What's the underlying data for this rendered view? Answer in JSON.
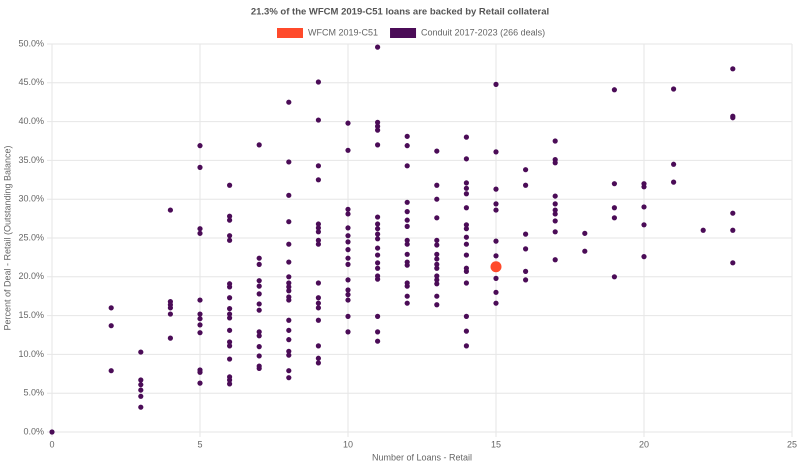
{
  "chart_data": {
    "type": "scatter",
    "title": "21.3% of the WFCM 2019-C51 loans are backed by Retail collateral",
    "x_label": "Number of Loans - Retail",
    "y_label": "Percent of Deal - Retail (Outstanding Balance)",
    "xlim": [
      0,
      25
    ],
    "xticks": [
      0,
      5,
      10,
      15,
      20,
      25
    ],
    "ylim": [
      0,
      50
    ],
    "yticks": [
      {
        "value": 0,
        "label": "0.0%"
      },
      {
        "value": 5,
        "label": "5.0%"
      },
      {
        "value": 10,
        "label": "10.0%"
      },
      {
        "value": 15,
        "label": "15.0%"
      },
      {
        "value": 20,
        "label": "20.0%"
      },
      {
        "value": 25,
        "label": "25.0%"
      },
      {
        "value": 30,
        "label": "30.0%"
      },
      {
        "value": 35,
        "label": "35.0%"
      },
      {
        "value": 40,
        "label": "40.0%"
      },
      {
        "value": 45,
        "label": "45.0%"
      },
      {
        "value": 50,
        "label": "50.0%"
      }
    ],
    "grid": true,
    "legend": "top",
    "series": [
      {
        "name": "WFCM 2019-C51",
        "color": "#ff4a2b",
        "x": [
          15
        ],
        "values": [
          21.3
        ]
      },
      {
        "name": "Conduit 2017-2023 (266 deals)",
        "color": "#4b0c57",
        "x": [
          0,
          2,
          2,
          2,
          3,
          3,
          3,
          3,
          3,
          3,
          4,
          4,
          4,
          4,
          4,
          4,
          5,
          5,
          5,
          5,
          5,
          5,
          5,
          5,
          5,
          5,
          5,
          5,
          6,
          6,
          6,
          6,
          6,
          6,
          6,
          6,
          6,
          6,
          6,
          6,
          6,
          6,
          6,
          6,
          6,
          6,
          7,
          7,
          7,
          7,
          7,
          7,
          7,
          7,
          7,
          7,
          7,
          7,
          7,
          7,
          8,
          8,
          8,
          8,
          8,
          8,
          8,
          8,
          8,
          8,
          8,
          8,
          8,
          8,
          8,
          8,
          8,
          8,
          8,
          9,
          9,
          9,
          9,
          9,
          9,
          9,
          9,
          9,
          9,
          9,
          9,
          9,
          9,
          9,
          9,
          9,
          10,
          10,
          10,
          10,
          10,
          10,
          10,
          10,
          10,
          10,
          10,
          10,
          10,
          10,
          10,
          10,
          11,
          11,
          11,
          11,
          11,
          11,
          11,
          11,
          11,
          11,
          11,
          11,
          11,
          11,
          11,
          11,
          11,
          11,
          11,
          12,
          12,
          12,
          12,
          12,
          12,
          12,
          12,
          12,
          12,
          12,
          12,
          12,
          12,
          12,
          12,
          13,
          13,
          13,
          13,
          13,
          13,
          13,
          13,
          13,
          13,
          13,
          13,
          13,
          13,
          13,
          14,
          14,
          14,
          14,
          14,
          14,
          14,
          14,
          14,
          14,
          14,
          14,
          14,
          14,
          14,
          14,
          14,
          15,
          15,
          15,
          15,
          15,
          15,
          15,
          15,
          15,
          15,
          15,
          16,
          16,
          16,
          16,
          16,
          16,
          17,
          17,
          17,
          17,
          17,
          17,
          17,
          17,
          17,
          17,
          18,
          18,
          19,
          19,
          19,
          19,
          19,
          20,
          20,
          20,
          20,
          20,
          21,
          21,
          21,
          22,
          23,
          23,
          23,
          23,
          23,
          23
        ],
        "values": [
          0,
          16.0,
          13.7,
          7.9,
          10.3,
          6.7,
          6.1,
          5.4,
          4.6,
          3.2,
          28.6,
          16.8,
          16.4,
          16.0,
          15.2,
          12.1,
          36.9,
          34.1,
          26.2,
          25.6,
          17.0,
          15.2,
          14.6,
          13.8,
          12.8,
          8.0,
          7.7,
          6.3,
          31.8,
          27.8,
          27.3,
          25.3,
          24.7,
          19.1,
          18.7,
          17.3,
          15.9,
          15.2,
          14.7,
          13.1,
          11.6,
          11.1,
          9.4,
          7.1,
          6.7,
          6.2,
          37.0,
          22.4,
          21.6,
          19.5,
          18.8,
          17.8,
          16.5,
          15.7,
          12.9,
          12.4,
          11.0,
          9.8,
          8.5,
          8.2,
          42.5,
          34.8,
          30.5,
          27.1,
          24.2,
          21.9,
          20.0,
          19.2,
          18.7,
          18.2,
          17.4,
          17.0,
          14.4,
          13.1,
          11.9,
          10.4,
          9.9,
          7.9,
          7.0,
          45.1,
          40.2,
          34.3,
          32.5,
          26.8,
          26.3,
          25.8,
          24.7,
          24.2,
          19.2,
          17.3,
          16.6,
          16.0,
          14.4,
          11.1,
          9.5,
          8.9,
          39.8,
          36.3,
          28.7,
          28.1,
          26.3,
          25.3,
          24.5,
          23.5,
          22.4,
          21.6,
          19.6,
          18.3,
          17.7,
          17.0,
          14.9,
          12.9,
          49.6,
          39.9,
          39.4,
          38.9,
          37.0,
          27.7,
          26.8,
          26.2,
          25.5,
          24.9,
          23.7,
          22.8,
          21.8,
          21.1,
          20.1,
          19.7,
          14.9,
          12.9,
          11.7,
          38.1,
          36.9,
          34.3,
          29.6,
          28.4,
          27.3,
          26.5,
          24.7,
          24.2,
          22.9,
          21.9,
          21.5,
          19.2,
          18.8,
          17.5,
          16.6,
          36.2,
          31.8,
          30.0,
          27.6,
          24.7,
          24.1,
          22.9,
          22.3,
          21.6,
          21.1,
          20.1,
          19.6,
          19.1,
          17.5,
          16.4,
          38.0,
          35.2,
          32.1,
          31.4,
          30.7,
          28.9,
          26.7,
          26.2,
          25.1,
          24.2,
          22.8,
          21.1,
          20.7,
          19.2,
          14.9,
          13.0,
          11.1,
          44.8,
          36.1,
          31.3,
          29.4,
          28.6,
          24.6,
          22.7,
          21.5,
          19.8,
          18.0,
          16.6,
          33.8,
          31.8,
          25.5,
          23.6,
          20.7,
          19.6,
          37.5,
          35.1,
          34.7,
          30.4,
          29.4,
          28.6,
          28.1,
          27.2,
          25.8,
          22.2,
          25.6,
          23.3,
          44.1,
          32.0,
          28.9,
          27.6,
          20.0,
          32.0,
          31.6,
          29.0,
          26.7,
          22.6,
          44.2,
          34.5,
          32.2,
          26.0,
          46.8,
          40.7,
          40.5,
          28.2,
          26.0,
          21.8
        ]
      }
    ]
  }
}
